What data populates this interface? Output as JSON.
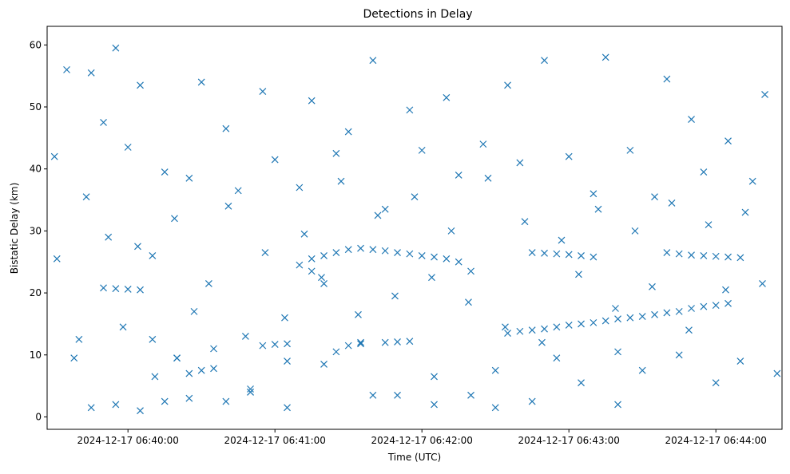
{
  "chart_data": {
    "type": "scatter",
    "title": "Detections in Delay",
    "xlabel": "Time (UTC)",
    "ylabel": "Bistatic Delay (km)",
    "xlim": [
      "2024-12-17 06:39:27",
      "2024-12-17 06:44:27"
    ],
    "ylim": [
      -2,
      63
    ],
    "x_ticks": [
      "2024-12-17 06:40:00",
      "2024-12-17 06:41:00",
      "2024-12-17 06:42:00",
      "2024-12-17 06:43:00",
      "2024-12-17 06:44:00"
    ],
    "y_ticks": [
      "0",
      "10",
      "20",
      "30",
      "40",
      "50",
      "60"
    ],
    "grid": false,
    "marker": "x",
    "color": "#1f77b4",
    "series": [
      {
        "x": [
          "2024-12-17 06:39:30",
          "2024-12-17 06:39:35",
          "2024-12-17 06:39:40",
          "2024-12-17 06:39:45",
          "2024-12-17 06:39:50",
          "2024-12-17 06:39:55",
          "2024-12-17 06:40:00",
          "2024-12-17 06:40:05",
          "2024-12-17 06:40:10",
          "2024-12-17 06:40:15",
          "2024-12-17 06:40:20",
          "2024-12-17 06:40:25",
          "2024-12-17 06:40:30",
          "2024-12-17 06:40:35",
          "2024-12-17 06:40:40",
          "2024-12-17 06:40:45",
          "2024-12-17 06:40:50",
          "2024-12-17 06:40:55",
          "2024-12-17 06:41:00",
          "2024-12-17 06:41:05",
          "2024-12-17 06:41:10",
          "2024-12-17 06:41:15",
          "2024-12-17 06:41:20",
          "2024-12-17 06:41:25",
          "2024-12-17 06:41:30",
          "2024-12-17 06:41:35",
          "2024-12-17 06:41:40",
          "2024-12-17 06:41:45",
          "2024-12-17 06:41:50",
          "2024-12-17 06:41:55",
          "2024-12-17 06:42:00",
          "2024-12-17 06:42:05",
          "2024-12-17 06:42:10",
          "2024-12-17 06:42:15",
          "2024-12-17 06:42:20",
          "2024-12-17 06:42:25",
          "2024-12-17 06:42:30",
          "2024-12-17 06:42:35",
          "2024-12-17 06:42:40",
          "2024-12-17 06:42:45",
          "2024-12-17 06:42:50",
          "2024-12-17 06:42:55",
          "2024-12-17 06:43:00",
          "2024-12-17 06:43:05",
          "2024-12-17 06:43:10",
          "2024-12-17 06:43:15",
          "2024-12-17 06:43:20",
          "2024-12-17 06:43:25",
          "2024-12-17 06:43:30",
          "2024-12-17 06:43:35",
          "2024-12-17 06:43:40",
          "2024-12-17 06:43:45",
          "2024-12-17 06:43:50",
          "2024-12-17 06:43:55",
          "2024-12-17 06:44:00",
          "2024-12-17 06:44:05",
          "2024-12-17 06:44:10",
          "2024-12-17 06:44:15",
          "2024-12-17 06:44:20",
          "2024-12-17 06:44:25",
          "2024-12-17 06:39:31",
          "2024-12-17 06:39:38",
          "2024-12-17 06:39:43",
          "2024-12-17 06:39:52",
          "2024-12-17 06:39:58",
          "2024-12-17 06:40:04",
          "2024-12-17 06:40:11",
          "2024-12-17 06:40:19",
          "2024-12-17 06:40:27",
          "2024-12-17 06:40:33",
          "2024-12-17 06:40:41",
          "2024-12-17 06:40:48",
          "2024-12-17 06:40:56",
          "2024-12-17 06:41:04",
          "2024-12-17 06:41:12",
          "2024-12-17 06:41:19",
          "2024-12-17 06:41:27",
          "2024-12-17 06:41:34",
          "2024-12-17 06:41:42",
          "2024-12-17 06:41:49",
          "2024-12-17 06:41:57",
          "2024-12-17 06:42:04",
          "2024-12-17 06:42:12",
          "2024-12-17 06:42:19",
          "2024-12-17 06:42:27",
          "2024-12-17 06:42:34",
          "2024-12-17 06:42:42",
          "2024-12-17 06:42:49",
          "2024-12-17 06:42:57",
          "2024-12-17 06:43:04",
          "2024-12-17 06:43:12",
          "2024-12-17 06:43:19",
          "2024-12-17 06:43:27",
          "2024-12-17 06:43:34",
          "2024-12-17 06:43:42",
          "2024-12-17 06:43:49",
          "2024-12-17 06:43:57",
          "2024-12-17 06:44:04",
          "2024-12-17 06:44:12",
          "2024-12-17 06:44:19",
          "2024-12-17 06:39:50",
          "2024-12-17 06:39:55",
          "2024-12-17 06:40:00",
          "2024-12-17 06:40:05",
          "2024-12-17 06:40:10",
          "2024-12-17 06:40:20",
          "2024-12-17 06:40:25",
          "2024-12-17 06:40:30",
          "2024-12-17 06:40:35",
          "2024-12-17 06:40:50",
          "2024-12-17 06:40:55",
          "2024-12-17 06:41:00",
          "2024-12-17 06:41:05",
          "2024-12-17 06:41:15",
          "2024-12-17 06:41:20",
          "2024-12-17 06:41:25",
          "2024-12-17 06:41:30",
          "2024-12-17 06:41:35",
          "2024-12-17 06:41:45",
          "2024-12-17 06:41:50",
          "2024-12-17 06:41:55",
          "2024-12-17 06:42:35",
          "2024-12-17 06:42:40",
          "2024-12-17 06:42:45",
          "2024-12-17 06:42:50",
          "2024-12-17 06:42:55",
          "2024-12-17 06:43:00",
          "2024-12-17 06:43:05",
          "2024-12-17 06:43:10",
          "2024-12-17 06:43:15",
          "2024-12-17 06:43:20",
          "2024-12-17 06:43:25",
          "2024-12-17 06:43:30",
          "2024-12-17 06:43:35",
          "2024-12-17 06:43:40",
          "2024-12-17 06:43:45",
          "2024-12-17 06:43:50",
          "2024-12-17 06:43:55",
          "2024-12-17 06:44:00",
          "2024-12-17 06:44:05",
          "2024-12-17 06:41:10",
          "2024-12-17 06:41:15",
          "2024-12-17 06:41:20",
          "2024-12-17 06:41:25",
          "2024-12-17 06:41:30",
          "2024-12-17 06:41:35",
          "2024-12-17 06:41:40",
          "2024-12-17 06:41:45",
          "2024-12-17 06:41:50",
          "2024-12-17 06:41:55",
          "2024-12-17 06:42:00",
          "2024-12-17 06:42:05",
          "2024-12-17 06:42:10",
          "2024-12-17 06:42:15",
          "2024-12-17 06:42:20",
          "2024-12-17 06:42:45",
          "2024-12-17 06:42:50",
          "2024-12-17 06:42:55",
          "2024-12-17 06:43:00",
          "2024-12-17 06:43:05",
          "2024-12-17 06:43:10",
          "2024-12-17 06:43:40",
          "2024-12-17 06:43:45",
          "2024-12-17 06:43:50",
          "2024-12-17 06:43:55",
          "2024-12-17 06:44:00",
          "2024-12-17 06:44:05",
          "2024-12-17 06:44:10",
          "2024-12-17 06:39:45",
          "2024-12-17 06:39:55",
          "2024-12-17 06:40:05",
          "2024-12-17 06:40:15",
          "2024-12-17 06:40:25",
          "2024-12-17 06:40:40",
          "2024-12-17 06:40:50",
          "2024-12-17 06:41:05",
          "2024-12-17 06:41:40",
          "2024-12-17 06:42:05",
          "2024-12-17 06:42:30",
          "2024-12-17 06:43:20"
        ],
        "y": [
          42.0,
          56.0,
          12.5,
          55.5,
          47.5,
          59.5,
          43.5,
          53.5,
          12.5,
          39.5,
          9.5,
          38.5,
          54.0,
          11.0,
          46.5,
          36.5,
          4.0,
          52.5,
          41.5,
          9.0,
          37.0,
          51.0,
          8.5,
          42.5,
          46.0,
          12.0,
          57.5,
          33.5,
          3.5,
          49.5,
          43.0,
          6.5,
          51.5,
          39.0,
          3.5,
          44.0,
          7.5,
          53.5,
          41.0,
          2.5,
          57.5,
          9.5,
          42.0,
          5.5,
          36.0,
          58.0,
          10.5,
          43.0,
          7.5,
          35.5,
          54.5,
          10.0,
          48.0,
          39.5,
          5.5,
          44.5,
          9.0,
          38.0,
          52.0,
          7.0,
          25.5,
          9.5,
          35.5,
          29.0,
          14.5,
          27.5,
          6.5,
          32.0,
          17.0,
          21.5,
          34.0,
          13.0,
          26.5,
          16.0,
          29.5,
          22.5,
          38.0,
          16.5,
          32.5,
          19.5,
          35.5,
          22.5,
          30.0,
          18.5,
          38.5,
          14.5,
          31.5,
          12.0,
          28.5,
          23.0,
          33.5,
          17.5,
          30.0,
          21.0,
          34.5,
          14.0,
          31.0,
          20.5,
          33.0,
          21.5,
          20.8,
          20.7,
          20.6,
          20.5,
          26.0,
          9.5,
          7.0,
          7.5,
          7.8,
          4.5,
          11.5,
          11.7,
          11.8,
          23.5,
          21.5,
          10.5,
          11.5,
          11.8,
          12.0,
          12.1,
          12.2,
          13.5,
          13.8,
          14.0,
          14.2,
          14.5,
          14.8,
          15.0,
          15.2,
          15.5,
          15.8,
          16.0,
          16.2,
          16.5,
          16.8,
          17.0,
          17.5,
          17.8,
          18.0,
          18.3,
          24.5,
          25.5,
          26.0,
          26.5,
          27.0,
          27.2,
          27.0,
          26.8,
          26.5,
          26.3,
          26.0,
          25.8,
          25.5,
          25.0,
          23.5,
          26.5,
          26.4,
          26.3,
          26.2,
          26.0,
          25.8,
          26.5,
          26.3,
          26.1,
          26.0,
          25.9,
          25.8,
          25.7,
          1.5,
          2.0,
          1.0,
          2.5,
          3.0,
          2.5,
          4.0,
          1.5,
          3.5,
          2.0,
          1.5,
          2.0
        ]
      }
    ]
  }
}
